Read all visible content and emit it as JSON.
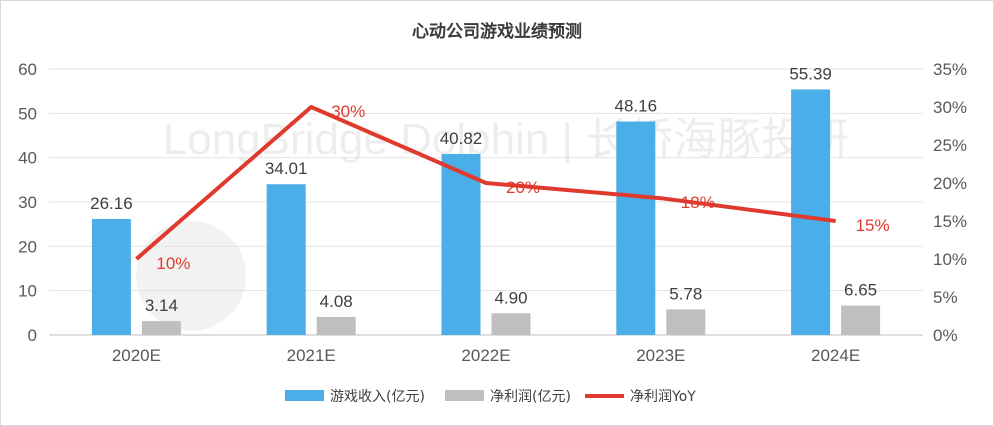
{
  "chart_data": {
    "type": "bar",
    "title": "心动公司游戏业绩预测",
    "categories": [
      "2020E",
      "2021E",
      "2022E",
      "2023E",
      "2024E"
    ],
    "series": [
      {
        "name": "游戏收入(亿元)",
        "kind": "bar",
        "axis": "left",
        "color": "#4aaee8",
        "values": [
          26.16,
          34.01,
          40.82,
          48.16,
          55.39
        ],
        "labels": [
          "26.16",
          "34.01",
          "40.82",
          "48.16",
          "55.39"
        ]
      },
      {
        "name": "净利润(亿元)",
        "kind": "bar",
        "axis": "left",
        "color": "#bfbfbf",
        "values": [
          3.14,
          4.08,
          4.9,
          5.78,
          6.65
        ],
        "labels": [
          "3.14",
          "4.08",
          "4.90",
          "5.78",
          "6.65"
        ]
      },
      {
        "name": "净利润YoY",
        "kind": "line",
        "axis": "right",
        "color": "#e03a2f",
        "values": [
          10,
          30,
          20,
          18,
          15
        ],
        "labels": [
          "10%",
          "30%",
          "20%",
          "18%",
          "15%"
        ]
      }
    ],
    "y_left": {
      "range": [
        0,
        60
      ],
      "ticks": [
        "0",
        "10",
        "20",
        "30",
        "40",
        "50",
        "60"
      ]
    },
    "y_right": {
      "range": [
        0,
        35
      ],
      "ticks": [
        "0%",
        "5%",
        "10%",
        "15%",
        "20%",
        "25%",
        "30%",
        "35%"
      ]
    },
    "grid": true,
    "legend_position": "bottom-center"
  },
  "watermark": "LongBridge Dolphin | 长桥海豚投研"
}
